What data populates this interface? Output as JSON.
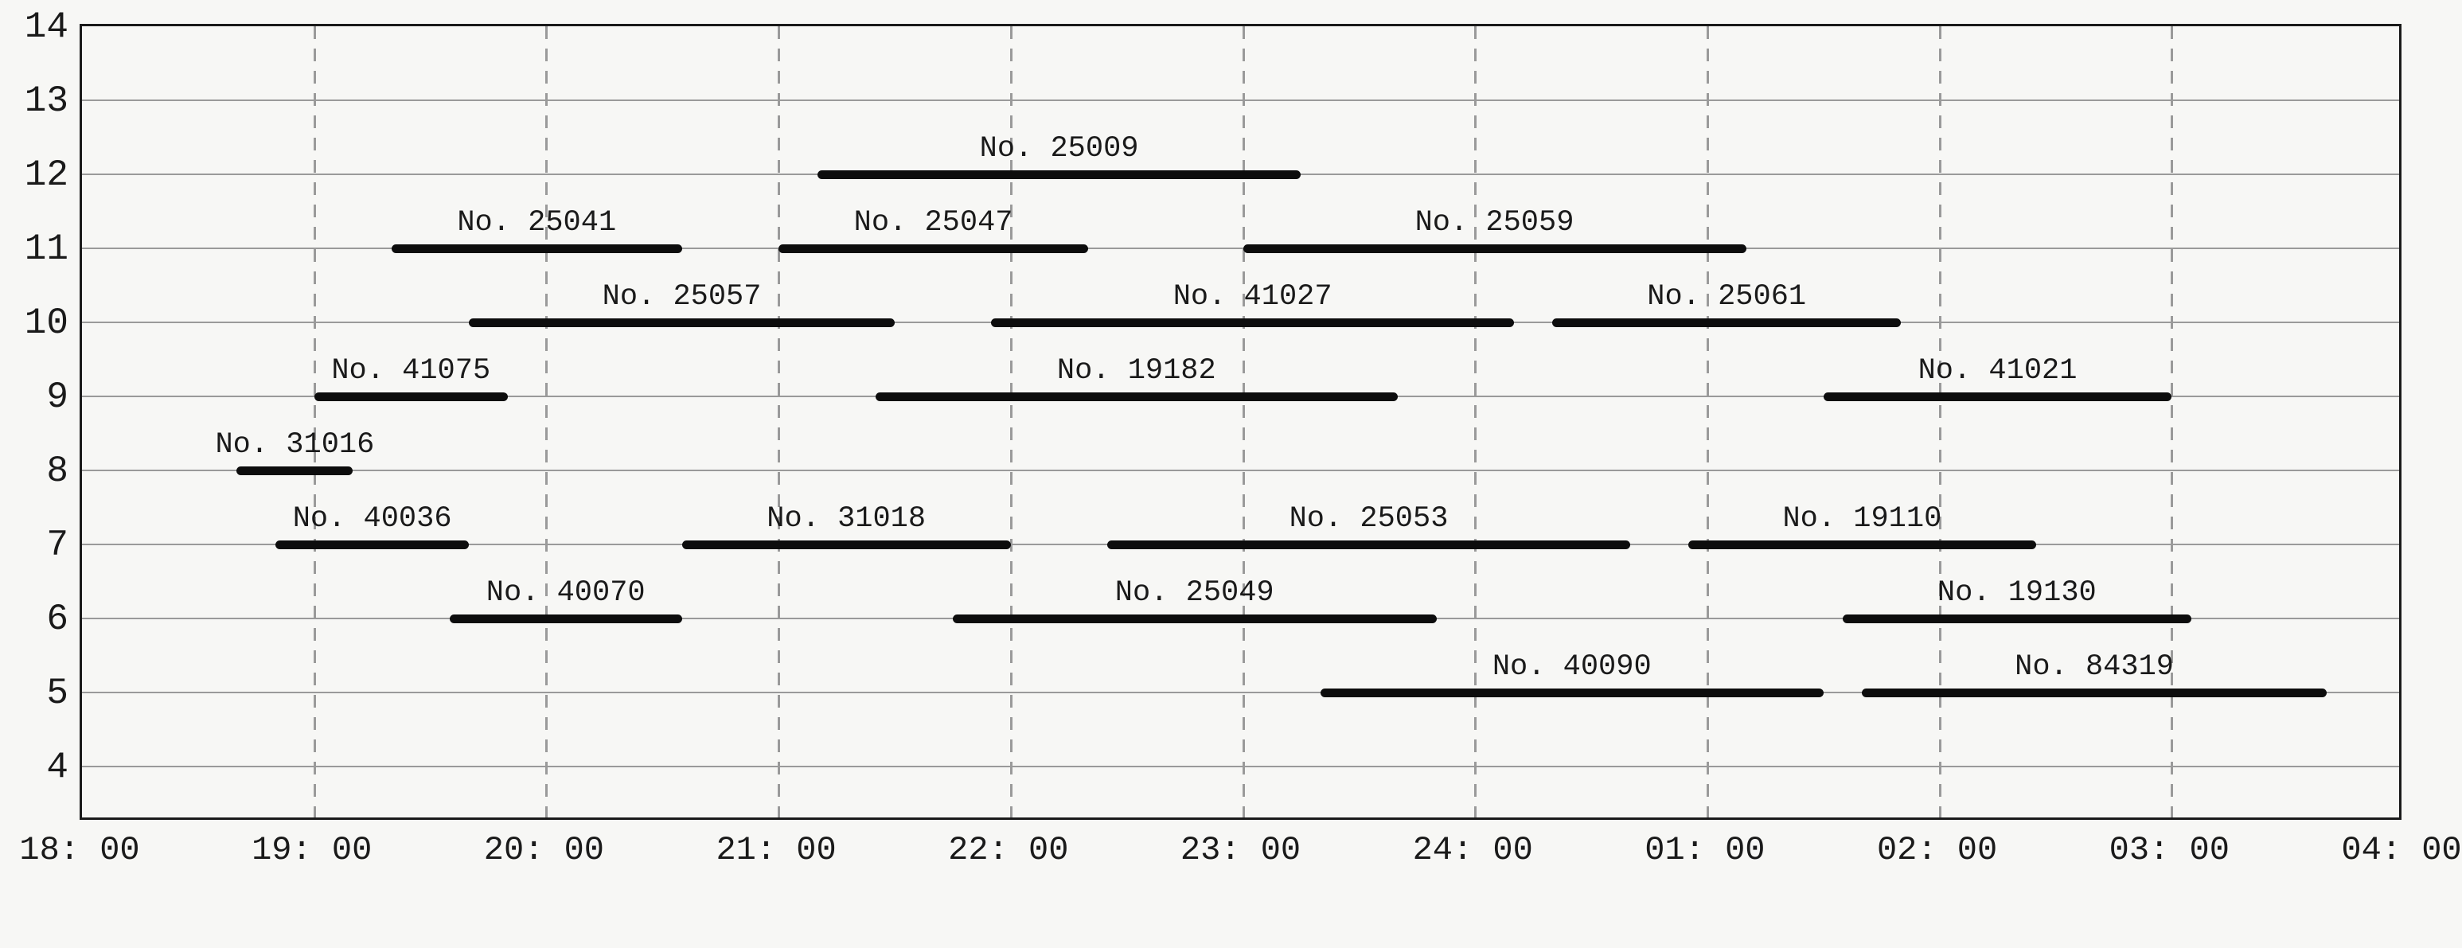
{
  "chart_data": {
    "type": "bar",
    "subtype": "gantt-train-occupation-diagram",
    "title": "",
    "x_axis": {
      "tick_labels": [
        "18: 00",
        "19: 00",
        "20: 00",
        "21: 00",
        "22: 00",
        "23: 00",
        "24: 00",
        "01: 00",
        "02: 00",
        "03: 00",
        "04: 00"
      ],
      "hours_range": [
        18,
        28
      ],
      "gridlines": "dashed vertical line at every labeled hour"
    },
    "y_axis": {
      "tick_labels": [
        "14",
        "13",
        "12",
        "11",
        "10",
        "9",
        "8",
        "7",
        "6",
        "5",
        "4"
      ],
      "range": [
        4,
        14
      ],
      "gridlines": "thin solid horizontal line at every integer"
    },
    "bars": [
      {
        "label": "No. 25009",
        "row": 12,
        "start": "21:10",
        "end": "23:15"
      },
      {
        "label": "No. 25041",
        "row": 11,
        "start": "19:20",
        "end": "20:35"
      },
      {
        "label": "No. 25047",
        "row": 11,
        "start": "21:00",
        "end": "22:20"
      },
      {
        "label": "No. 25059",
        "row": 11,
        "start": "23:00",
        "end": "01:10"
      },
      {
        "label": "No. 25057",
        "row": 10,
        "start": "19:40",
        "end": "21:30"
      },
      {
        "label": "No. 41027",
        "row": 10,
        "start": "21:55",
        "end": "00:10"
      },
      {
        "label": "No. 25061",
        "row": 10,
        "start": "00:20",
        "end": "01:50"
      },
      {
        "label": "No. 41075",
        "row": 9,
        "start": "19:00",
        "end": "19:50"
      },
      {
        "label": "No. 19182",
        "row": 9,
        "start": "21:25",
        "end": "23:40"
      },
      {
        "label": "No. 41021",
        "row": 9,
        "start": "01:30",
        "end": "03:00"
      },
      {
        "label": "No. 31016",
        "row": 8,
        "start": "18:40",
        "end": "19:10"
      },
      {
        "label": "No. 40036",
        "row": 7,
        "start": "18:50",
        "end": "19:40"
      },
      {
        "label": "No. 31018",
        "row": 7,
        "start": "20:35",
        "end": "22:00"
      },
      {
        "label": "No. 25053",
        "row": 7,
        "start": "22:25",
        "end": "00:40"
      },
      {
        "label": "No. 19110",
        "row": 7,
        "start": "00:55",
        "end": "02:25"
      },
      {
        "label": "No. 40070",
        "row": 6,
        "start": "19:35",
        "end": "20:35"
      },
      {
        "label": "No. 25049",
        "row": 6,
        "start": "21:45",
        "end": "23:50"
      },
      {
        "label": "No. 19130",
        "row": 6,
        "start": "01:35",
        "end": "03:05"
      },
      {
        "label": "No. 40090",
        "row": 5,
        "start": "23:20",
        "end": "01:30"
      },
      {
        "label": "No. 84319",
        "row": 5,
        "start": "01:40",
        "end": "03:40"
      }
    ],
    "legend": null
  },
  "colors": {
    "background": "#f7f7f5",
    "bar": "#0d0d0d",
    "grid": "#9a9a9a",
    "border": "#1a1a1a",
    "text": "#1a1a1a"
  }
}
